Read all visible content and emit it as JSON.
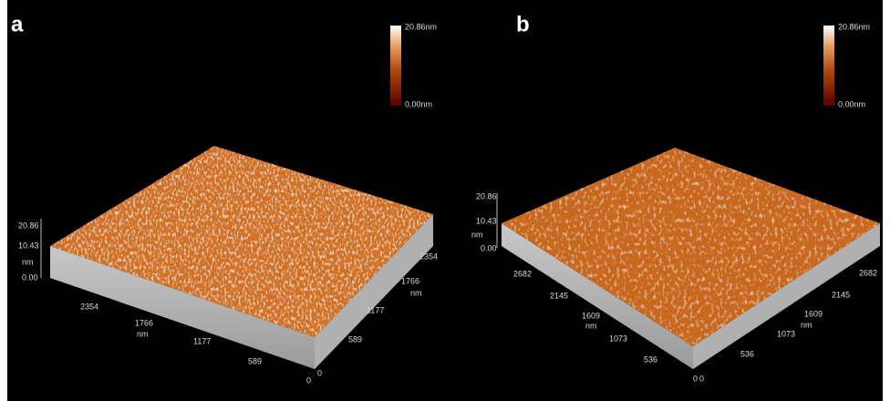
{
  "panels": [
    {
      "label": "a",
      "colorbar": {
        "max": "20.86nm",
        "min": "0.00nm"
      },
      "z_axis": {
        "ticks": [
          "20.86",
          "10.43",
          "0.00"
        ],
        "unit": "nm"
      },
      "left_axis": {
        "ticks": [
          "2354",
          "1766",
          "1177",
          "589",
          "0"
        ],
        "unit": "nm"
      },
      "right_axis": {
        "ticks": [
          "2354",
          "1766",
          "1177",
          "589",
          "0"
        ],
        "unit": "nm"
      }
    },
    {
      "label": "b",
      "colorbar": {
        "max": "20.86nm",
        "min": "0.00nm"
      },
      "z_axis": {
        "ticks": [
          "20.86",
          "10.43",
          "0.00"
        ],
        "unit": "nm"
      },
      "left_axis": {
        "ticks": [
          "2682",
          "2145",
          "1609",
          "1073",
          "536",
          "0"
        ],
        "unit": "nm"
      },
      "right_axis": {
        "ticks": [
          "2682",
          "2145",
          "1609",
          "1073",
          "536",
          "0"
        ],
        "unit": "nm"
      }
    }
  ]
}
